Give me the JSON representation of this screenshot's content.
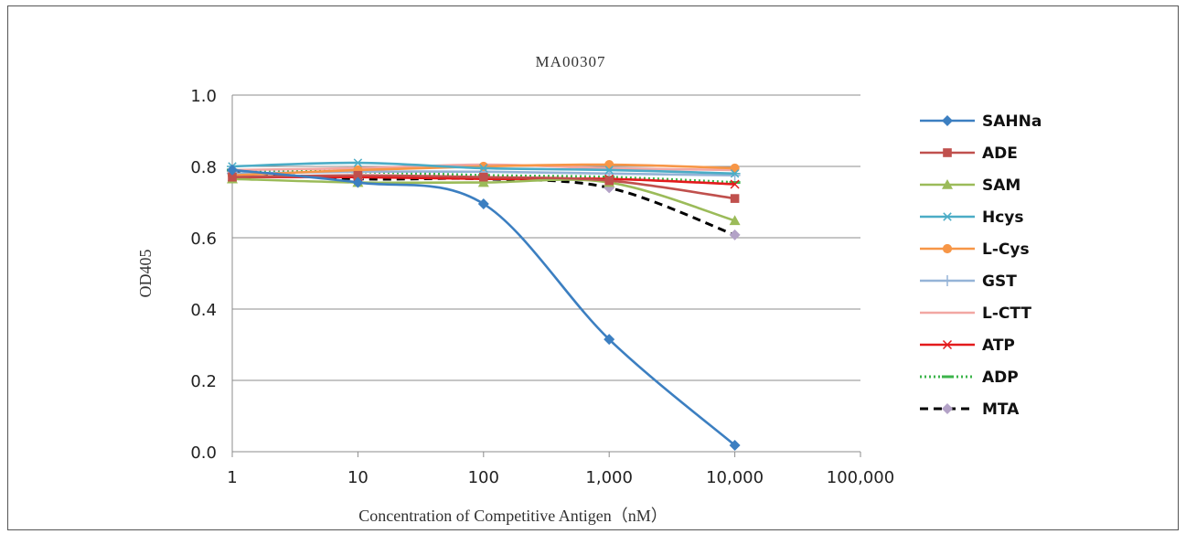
{
  "chart_data": {
    "type": "line",
    "title": "MA00307",
    "xlabel": "Concentration of Competitive Antigen（nM）",
    "ylabel": "OD405",
    "x_scale": "log",
    "x": [
      1,
      10,
      100,
      1000,
      10000
    ],
    "x_tick_labels": [
      "1",
      "10",
      "100",
      "1,000",
      "10,000",
      "100,000"
    ],
    "y_tick_labels": [
      "0.0",
      "0.2",
      "0.4",
      "0.6",
      "0.8",
      "1.0"
    ],
    "xlim": [
      1,
      100000
    ],
    "ylim": [
      0,
      1.0
    ],
    "grid": "horizontal",
    "legend_position": "right",
    "series": [
      {
        "name": "SAHNa",
        "values": [
          0.79,
          0.755,
          0.695,
          0.315,
          0.018
        ],
        "color": "#3c7fc1",
        "marker": "diamond",
        "dash": "solid"
      },
      {
        "name": "ADE",
        "values": [
          0.77,
          0.775,
          0.77,
          0.76,
          0.71
        ],
        "color": "#c0504d",
        "marker": "square",
        "dash": "solid"
      },
      {
        "name": "SAM",
        "values": [
          0.765,
          0.755,
          0.755,
          0.755,
          0.648
        ],
        "color": "#9bbb59",
        "marker": "triangle",
        "dash": "solid"
      },
      {
        "name": "Hcys",
        "values": [
          0.8,
          0.81,
          0.795,
          0.79,
          0.78
        ],
        "color": "#4bacc6",
        "marker": "asterisk",
        "dash": "solid"
      },
      {
        "name": "L-Cys",
        "values": [
          0.775,
          0.79,
          0.8,
          0.805,
          0.795
        ],
        "color": "#f79646",
        "marker": "circle",
        "dash": "solid"
      },
      {
        "name": "GST",
        "values": [
          0.78,
          0.785,
          0.785,
          0.78,
          0.775
        ],
        "color": "#95b3d7",
        "marker": "plus",
        "dash": "solid"
      },
      {
        "name": "L-CTT",
        "values": [
          0.79,
          0.795,
          0.805,
          0.795,
          0.79
        ],
        "color": "#f2a7a3",
        "marker": "none",
        "dash": "solid"
      },
      {
        "name": "ATP",
        "values": [
          0.77,
          0.77,
          0.765,
          0.765,
          0.75
        ],
        "color": "#e31a1c",
        "marker": "x",
        "dash": "solid"
      },
      {
        "name": "ADP",
        "values": [
          0.79,
          0.785,
          0.775,
          0.77,
          0.755
        ],
        "color": "#3cb44b",
        "marker": "bar",
        "dash": "dotted"
      },
      {
        "name": "MTA",
        "values": [
          0.785,
          0.765,
          0.765,
          0.74,
          0.608
        ],
        "color": "#000000",
        "marker": "diamond",
        "marker_color": "#b3a2c7",
        "dash": "dashed"
      }
    ]
  }
}
